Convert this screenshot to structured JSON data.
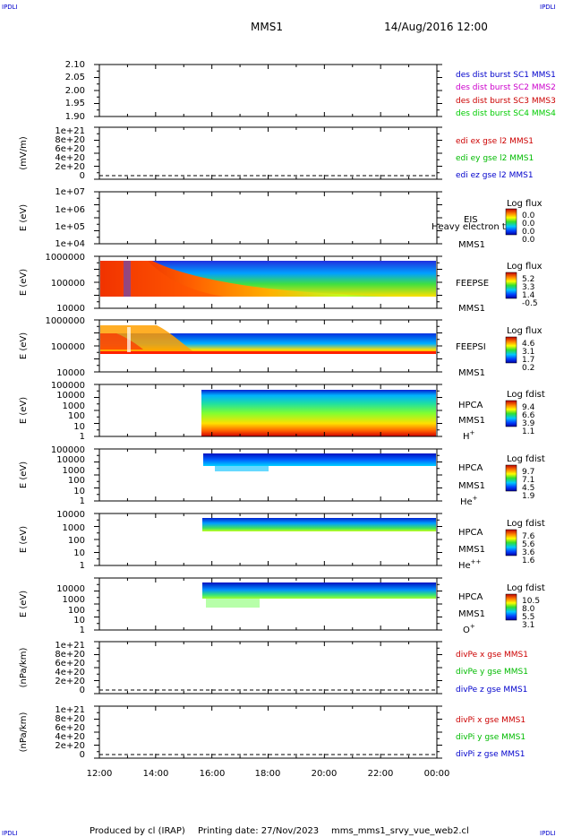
{
  "corner_tags": {
    "top_left": "IPDLI",
    "top_right": "IPDLI",
    "bottom_left": "IPDLI",
    "bottom_right": "IPDLI"
  },
  "header": {
    "spacecraft": "MMS1",
    "datetime": "14/Aug/2016 12:00"
  },
  "footer": {
    "produced_by": "Produced by cl (IRAP)",
    "printing_date": "Printing date: 27/Nov/2023",
    "script": "mms_mms1_srvy_vue_web2.cl"
  },
  "colors": {
    "c1": "#0000cc",
    "c2": "#cc00cc",
    "c3": "#cc0000",
    "c4": "#00cc00",
    "x": "#cc0000",
    "y": "#00bb00",
    "z": "#0000cc"
  },
  "time_axis": {
    "ticks": [
      "12:00",
      "14:00",
      "16:00",
      "18:00",
      "20:00",
      "22:00",
      "00:00"
    ],
    "start_hour": 12,
    "end_hour": 24
  },
  "chart_data": [
    {
      "type": "line",
      "panel": "p1",
      "yticks": [
        "2.10",
        "2.05",
        "2.00",
        "1.95",
        "1.90"
      ],
      "ylim": [
        1.9,
        2.1
      ],
      "legend": [
        "des dist burst SC1 MMS1",
        "des dist burst SC2 MMS2",
        "des dist burst SC3 MMS3",
        "des dist burst SC4 MMS4"
      ]
    },
    {
      "type": "line",
      "panel": "p2",
      "ylabel": "(mV/m)",
      "yticks": [
        "1e+21",
        "8e+20",
        "6e+20",
        "4e+20",
        "2e+20",
        "0"
      ],
      "legend": [
        "edi ex gse l2 MMS1",
        "edi ey gse l2 MMS1",
        "edi ez gse l2 MMS1"
      ]
    },
    {
      "type": "heatmap",
      "panel": "p3",
      "ylabel": "E (eV)",
      "yticks": [
        "1e+07",
        "1e+06",
        "1e+05",
        "1e+04"
      ],
      "instrument": "EIS",
      "overlay": "Heavy electron tof",
      "sc": "MMS1",
      "colorbar": {
        "title": "Log flux",
        "ticks": [
          "0.0",
          "0.0",
          "0.0",
          "0.0"
        ]
      }
    },
    {
      "type": "heatmap",
      "panel": "p4",
      "ylabel": "E (eV)",
      "yticks": [
        "1000000",
        "100000",
        "10000"
      ],
      "instrument": "FEEPSE",
      "sc": "MMS1",
      "colorbar": {
        "title": "Log flux",
        "ticks": [
          "5.2",
          "3.3",
          "1.4",
          "-0.5"
        ]
      }
    },
    {
      "type": "heatmap",
      "panel": "p5",
      "ylabel": "E (eV)",
      "yticks": [
        "1000000",
        "100000",
        "10000"
      ],
      "instrument": "FEEPSI",
      "sc": "MMS1",
      "colorbar": {
        "title": "Log flux",
        "ticks": [
          "4.6",
          "3.1",
          "1.7",
          "0.2"
        ]
      }
    },
    {
      "type": "heatmap",
      "panel": "p6",
      "ylabel": "E (eV)",
      "yticks": [
        "100000",
        "10000",
        "1000",
        "100",
        "10",
        "1"
      ],
      "instrument": "HPCA",
      "sc": "MMS1",
      "species": "H",
      "charge": "+",
      "colorbar": {
        "title": "Log fdist",
        "ticks": [
          "9.4",
          "6.6",
          "3.9",
          "1.1"
        ]
      }
    },
    {
      "type": "heatmap",
      "panel": "p7",
      "ylabel": "E (eV)",
      "yticks": [
        "100000",
        "10000",
        "1000",
        "100",
        "10",
        "1"
      ],
      "instrument": "HPCA",
      "sc": "MMS1",
      "species": "He",
      "charge": "+",
      "colorbar": {
        "title": "Log fdist",
        "ticks": [
          "9.7",
          "7.1",
          "4.5",
          "1.9"
        ]
      }
    },
    {
      "type": "heatmap",
      "panel": "p8",
      "ylabel": "E (eV)",
      "yticks": [
        "10000",
        "1000",
        "100",
        "10",
        "1"
      ],
      "instrument": "HPCA",
      "sc": "MMS1",
      "species": "He",
      "charge": "++",
      "colorbar": {
        "title": "Log fdist",
        "ticks": [
          "7.6",
          "5.6",
          "3.6",
          "1.6"
        ]
      }
    },
    {
      "type": "heatmap",
      "panel": "p9",
      "ylabel": "E (eV)",
      "yticks": [
        "10000",
        "1000",
        "100",
        "10",
        "1"
      ],
      "instrument": "HPCA",
      "sc": "MMS1",
      "species": "O",
      "charge": "+",
      "colorbar": {
        "title": "Log fdist",
        "ticks": [
          "10.5",
          "8.0",
          "5.5",
          "3.1"
        ]
      }
    },
    {
      "type": "line",
      "panel": "p10",
      "ylabel": "(nPa/km)",
      "yticks": [
        "1e+21",
        "8e+20",
        "6e+20",
        "4e+20",
        "2e+20",
        "0"
      ],
      "legend": [
        "divPe x gse MMS1",
        "divPe y gse MMS1",
        "divPe z gse MMS1"
      ]
    },
    {
      "type": "line",
      "panel": "p11",
      "ylabel": "(nPa/km)",
      "yticks": [
        "1e+21",
        "8e+20",
        "6e+20",
        "4e+20",
        "2e+20",
        "0"
      ],
      "legend": [
        "divPi x gse MMS1",
        "divPi y gse MMS1",
        "divPi z gse MMS1"
      ]
    }
  ]
}
